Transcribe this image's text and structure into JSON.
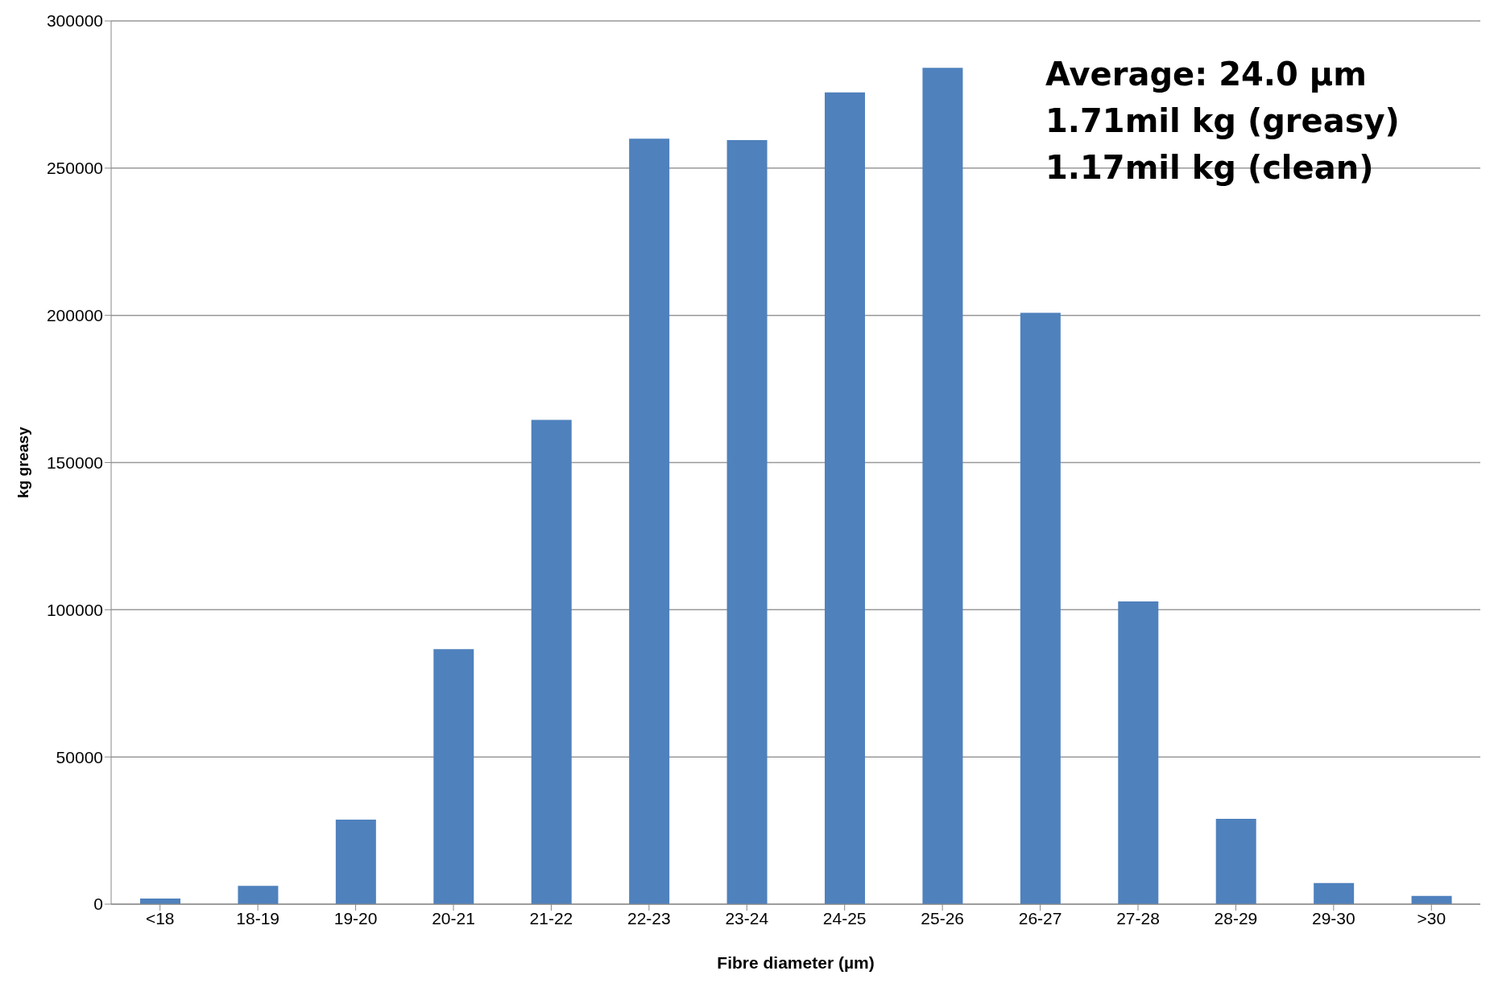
{
  "chart_data": {
    "type": "bar",
    "xlabel": "Fibre diameter (µm)",
    "ylabel": "kg greasy",
    "categories": [
      "<18",
      "18-19",
      "19-20",
      "20-21",
      "21-22",
      "22-23",
      "23-24",
      "24-25",
      "25-26",
      "26-27",
      "27-28",
      "28-29",
      "29-30",
      ">30"
    ],
    "values": [
      1900,
      6200,
      28700,
      86600,
      164500,
      260000,
      259500,
      275700,
      284100,
      200900,
      102800,
      29000,
      7200,
      2800
    ],
    "color": "#4f81bd",
    "ylim": [
      0,
      300000
    ],
    "yticks": [
      0,
      50000,
      100000,
      150000,
      200000,
      250000,
      300000
    ],
    "grid": "y",
    "annotations": [
      "Average: 24.0 µm",
      "1.71mil  kg (greasy)",
      "1.17mil kg (clean)"
    ]
  }
}
